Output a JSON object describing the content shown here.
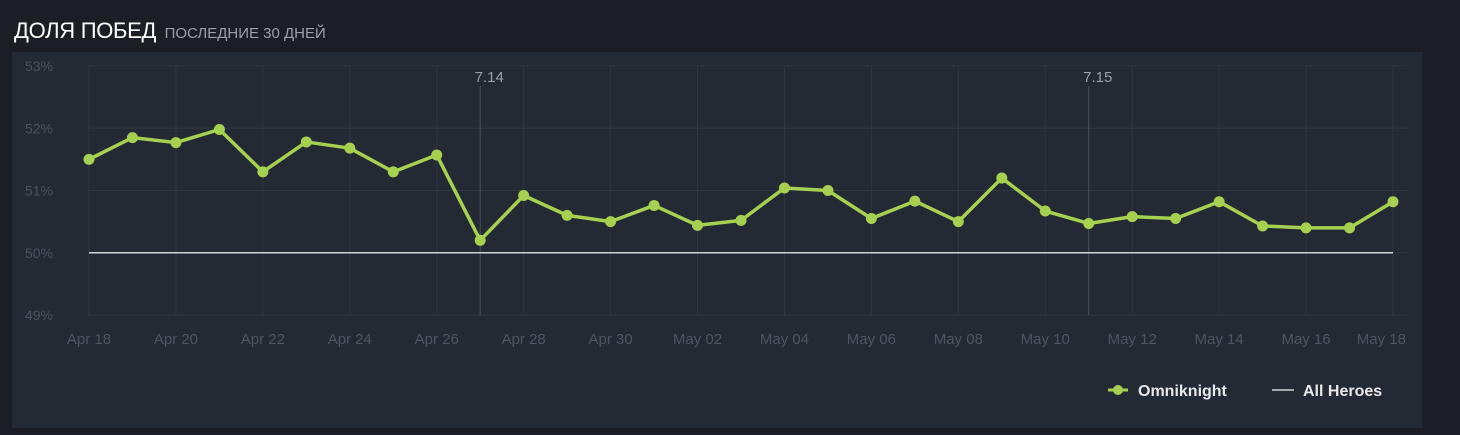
{
  "header": {
    "title": "ДОЛЯ ПОБЕД",
    "subtitle": "ПОСЛЕДНИЕ 30 ДНЕЙ"
  },
  "colors": {
    "series": "#a6d150",
    "baseline": "#d0d3d6",
    "grid": "#2f3640",
    "patch_line": "#4a525c"
  },
  "chart_data": {
    "type": "line",
    "title": "ДОЛЯ ПОБЕД",
    "subtitle": "ПОСЛЕДНИЕ 30 ДНЕЙ",
    "xlabel": "",
    "ylabel": "",
    "ylim": [
      49,
      53
    ],
    "yticks": [
      "49%",
      "50%",
      "51%",
      "52%",
      "53%"
    ],
    "ytick_values": [
      49,
      50,
      51,
      52,
      53
    ],
    "x": [
      "Apr 18",
      "Apr 19",
      "Apr 20",
      "Apr 21",
      "Apr 22",
      "Apr 23",
      "Apr 24",
      "Apr 25",
      "Apr 26",
      "Apr 27",
      "Apr 28",
      "Apr 29",
      "Apr 30",
      "May 01",
      "May 02",
      "May 03",
      "May 04",
      "May 05",
      "May 06",
      "May 07",
      "May 08",
      "May 09",
      "May 10",
      "May 11",
      "May 12",
      "May 13",
      "May 14",
      "May 15",
      "May 16",
      "May 17",
      "May 18"
    ],
    "xtick_labels": [
      "Apr 18",
      "Apr 20",
      "Apr 22",
      "Apr 24",
      "Apr 26",
      "Apr 28",
      "Apr 30",
      "May 02",
      "May 04",
      "May 06",
      "May 08",
      "May 10",
      "May 12",
      "May 14",
      "May 16",
      "May 18"
    ],
    "series": [
      {
        "name": "Omniknight",
        "values": [
          51.5,
          51.85,
          51.77,
          51.98,
          51.3,
          51.78,
          51.68,
          51.3,
          51.57,
          50.2,
          50.92,
          50.6,
          50.5,
          50.76,
          50.44,
          50.52,
          51.04,
          51.0,
          50.55,
          50.83,
          50.5,
          51.2,
          50.67,
          50.47,
          50.58,
          50.55,
          50.82,
          50.43,
          50.4,
          50.4,
          50.82
        ]
      },
      {
        "name": "All Heroes",
        "values": [
          50,
          50,
          50,
          50,
          50,
          50,
          50,
          50,
          50,
          50,
          50,
          50,
          50,
          50,
          50,
          50,
          50,
          50,
          50,
          50,
          50,
          50,
          50,
          50,
          50,
          50,
          50,
          50,
          50,
          50,
          50
        ]
      }
    ],
    "annotations": [
      {
        "label": "7.14",
        "x": "Apr 27"
      },
      {
        "label": "7.15",
        "x": "May 11"
      }
    ],
    "grid": true,
    "legend": "bottom-right"
  }
}
